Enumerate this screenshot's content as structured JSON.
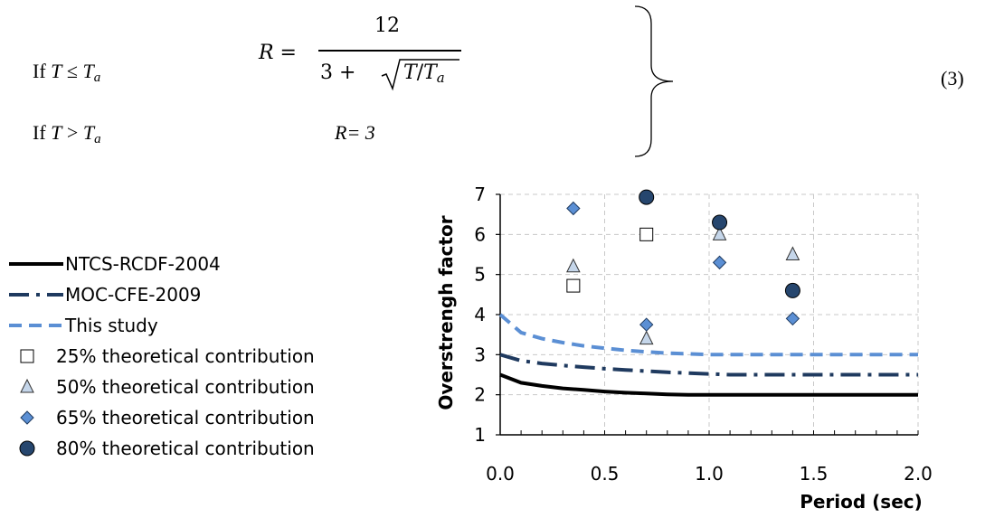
{
  "equation": {
    "cond1_prefix": "If ",
    "cond1_T": "T",
    "cond1_op": " ≤ ",
    "cond1_Ta": "T",
    "cond1_Ta_sub": "a",
    "cond2_prefix": "If ",
    "cond2_T": "T",
    "cond2_op": " > ",
    "cond2_Ta": "T",
    "cond2_Ta_sub": "a",
    "lhs": "R =",
    "numerator": "12",
    "denominator_prefix": "3 + ",
    "sqrt_content_T": "T",
    "sqrt_slash": "/",
    "sqrt_content_Ta": "T",
    "sqrt_content_Ta_sub": "a",
    "rhs2": "R= 3",
    "number": "(3)"
  },
  "chart_data": {
    "type": "line",
    "xlabel": "Period (sec)",
    "ylabel": "Overstrengh factor",
    "xlim": [
      0.0,
      2.0
    ],
    "ylim": [
      1,
      7
    ],
    "xticks": [
      "0.0",
      "0.5",
      "1.0",
      "1.5",
      "2.0"
    ],
    "yticks": [
      "1",
      "2",
      "3",
      "4",
      "5",
      "6",
      "7"
    ],
    "grid": true,
    "legend_position": "left",
    "series": [
      {
        "name": "NTCS-RCDF-2004",
        "kind": "line",
        "style": "solid",
        "color": "#000000",
        "x": [
          0.0,
          0.1,
          0.2,
          0.3,
          0.4,
          0.5,
          0.6,
          0.7,
          0.8,
          0.9,
          1.0,
          1.5,
          2.0
        ],
        "y": [
          2.5,
          2.3,
          2.22,
          2.16,
          2.12,
          2.08,
          2.05,
          2.03,
          2.01,
          2.0,
          2.0,
          2.0,
          2.0
        ]
      },
      {
        "name": "MOC-CFE-2009",
        "kind": "line",
        "style": "dashdot",
        "color": "#1f3a5f",
        "x": [
          0.0,
          0.1,
          0.2,
          0.3,
          0.4,
          0.5,
          0.6,
          0.7,
          0.8,
          0.9,
          1.0,
          1.1,
          1.2,
          1.5,
          2.0
        ],
        "y": [
          3.0,
          2.85,
          2.78,
          2.73,
          2.69,
          2.65,
          2.62,
          2.59,
          2.56,
          2.54,
          2.52,
          2.5,
          2.5,
          2.5,
          2.5
        ]
      },
      {
        "name": "This study",
        "kind": "line",
        "style": "dashed",
        "color": "#5b8fd4",
        "x": [
          0.0,
          0.1,
          0.2,
          0.3,
          0.4,
          0.5,
          0.6,
          0.7,
          0.8,
          0.9,
          1.0,
          1.5,
          2.0
        ],
        "y": [
          4.0,
          3.55,
          3.4,
          3.3,
          3.22,
          3.16,
          3.11,
          3.07,
          3.04,
          3.02,
          3.0,
          3.0,
          3.0
        ]
      },
      {
        "name": "25% theoretical contribution",
        "kind": "marker",
        "marker": "square",
        "color": "#ffffff",
        "x": [
          0.35,
          0.7
        ],
        "y": [
          4.72,
          6.0
        ]
      },
      {
        "name": "50% theoretical contribution",
        "kind": "marker",
        "marker": "triangle",
        "color": "#c5d6ea",
        "x": [
          0.35,
          0.7,
          1.05,
          1.4
        ],
        "y": [
          5.2,
          3.4,
          6.0,
          5.5
        ]
      },
      {
        "name": "65% theoretical contribution",
        "kind": "marker",
        "marker": "diamond",
        "color": "#5b8fd4",
        "x": [
          0.35,
          0.7,
          1.05,
          1.4
        ],
        "y": [
          6.65,
          3.75,
          5.3,
          3.9
        ]
      },
      {
        "name": "80% theoretical contribution",
        "kind": "marker",
        "marker": "circle",
        "color": "#26466e",
        "x": [
          0.7,
          1.05,
          1.4
        ],
        "y": [
          6.93,
          6.3,
          4.6
        ]
      }
    ]
  }
}
